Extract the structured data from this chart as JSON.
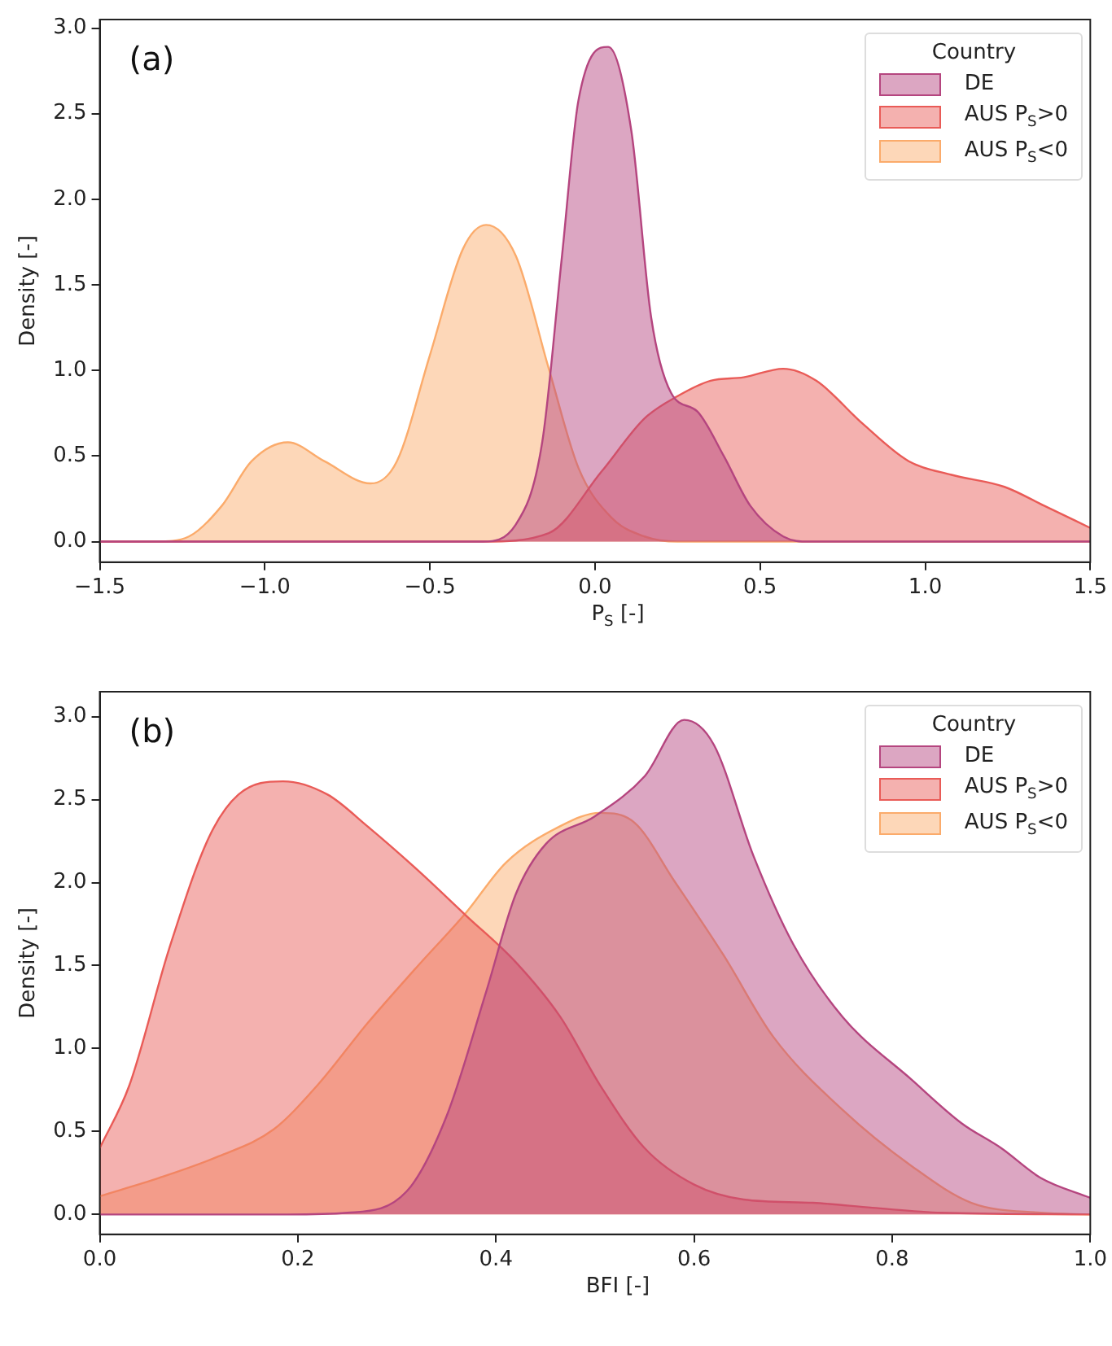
{
  "chart_data": [
    {
      "type": "area",
      "xlabel": "P$_{S}$ [-]",
      "ylabel": "Density [-]",
      "legend_title": "Country",
      "legend": "top right",
      "grid": false,
      "annotations": [
        "(a)"
      ],
      "xlim": [
        -1.5,
        1.5
      ],
      "xticks": [
        {
          "value": -1.5,
          "label": "−1.5"
        },
        {
          "value": -1.0,
          "label": "−1.0"
        },
        {
          "value": -0.5,
          "label": "−0.5"
        },
        {
          "value": 0,
          "label": "0.0"
        },
        {
          "value": 0.5,
          "label": "0.5"
        },
        {
          "value": 1.0,
          "label": "1.0"
        },
        {
          "value": 1.5,
          "label": "1.5"
        }
      ],
      "ylim": [
        -0.12,
        3.05
      ],
      "yticks": [
        {
          "value": 0,
          "label": "0.0"
        },
        0.5,
        {
          "value": 1.0,
          "label": "1.0"
        },
        1.5,
        {
          "value": 2.0,
          "label": "2.0"
        },
        2.5,
        {
          "value": 3.0,
          "label": "3.0"
        }
      ],
      "series": [
        {
          "name": "DE",
          "color": "#b5457f",
          "x": [
            -1.5,
            -0.34,
            -0.24,
            -0.16,
            -0.1,
            -0.05,
            0.04,
            0.11,
            0.17,
            0.23,
            0.31,
            0.39,
            0.47,
            0.57,
            0.65,
            1.5
          ],
          "values": [
            0,
            0,
            0.1,
            0.58,
            1.67,
            2.58,
            2.89,
            2.4,
            1.31,
            0.87,
            0.76,
            0.5,
            0.21,
            0.03,
            0,
            0
          ]
        },
        {
          "name": "AUS P$_{S}$>0",
          "color": "#e95b57",
          "x": [
            -1.5,
            -0.34,
            -0.14,
            0.02,
            0.15,
            0.25,
            0.35,
            0.45,
            0.57,
            0.67,
            0.81,
            0.95,
            1.08,
            1.24,
            1.36,
            1.5
          ],
          "values": [
            0,
            0,
            0.05,
            0.41,
            0.72,
            0.85,
            0.94,
            0.96,
            1.01,
            0.94,
            0.69,
            0.47,
            0.39,
            0.32,
            0.21,
            0.08
          ]
        },
        {
          "name": "AUS P$_{S}$<0",
          "color": "#fbab6b",
          "x": [
            -1.5,
            -1.33,
            -1.23,
            -1.13,
            -1.04,
            -0.93,
            -0.82,
            -0.68,
            -0.6,
            -0.5,
            -0.4,
            -0.33,
            -0.24,
            -0.14,
            -0.05,
            0.05,
            0.15,
            0.25,
            1.5
          ],
          "values": [
            0,
            0,
            0.03,
            0.21,
            0.47,
            0.58,
            0.47,
            0.34,
            0.47,
            1.09,
            1.71,
            1.85,
            1.67,
            1.01,
            0.43,
            0.14,
            0.03,
            0,
            0
          ]
        }
      ]
    },
    {
      "type": "area",
      "xlabel": "BFI [-]",
      "ylabel": "Density [-]",
      "legend_title": "Country",
      "legend": "top right",
      "grid": false,
      "annotations": [
        "(b)"
      ],
      "xlim": [
        0,
        1.0
      ],
      "xticks": [
        {
          "value": 0,
          "label": "0.0"
        },
        0.2,
        0.4,
        0.6,
        0.8,
        {
          "value": 1.0,
          "label": "1.0"
        }
      ],
      "ylim": [
        -0.12,
        3.15
      ],
      "yticks": [
        {
          "value": 0,
          "label": "0.0"
        },
        0.5,
        {
          "value": 1.0,
          "label": "1.0"
        },
        1.5,
        {
          "value": 2.0,
          "label": "2.0"
        },
        2.5,
        {
          "value": 3.0,
          "label": "3.0"
        }
      ],
      "series": [
        {
          "name": "DE",
          "color": "#b5457f",
          "x": [
            0,
            0.19,
            0.25,
            0.31,
            0.35,
            0.39,
            0.42,
            0.45,
            0.5,
            0.55,
            0.59,
            0.62,
            0.66,
            0.7,
            0.75,
            0.82,
            0.87,
            0.91,
            0.95,
            1.0
          ],
          "values": [
            0,
            0,
            0.01,
            0.14,
            0.59,
            1.34,
            1.93,
            2.23,
            2.4,
            2.64,
            2.98,
            2.83,
            2.16,
            1.63,
            1.19,
            0.81,
            0.55,
            0.4,
            0.22,
            0.1
          ]
        },
        {
          "name": "AUS P$_{S}$>0",
          "color": "#e95b57",
          "x": [
            0,
            0.03,
            0.07,
            0.11,
            0.14,
            0.185,
            0.23,
            0.27,
            0.32,
            0.37,
            0.42,
            0.465,
            0.505,
            0.55,
            0.6,
            0.65,
            0.72,
            0.78,
            0.85,
            1.0
          ],
          "values": [
            0.4,
            0.78,
            1.6,
            2.27,
            2.53,
            2.61,
            2.53,
            2.34,
            2.08,
            1.8,
            1.52,
            1.19,
            0.78,
            0.4,
            0.18,
            0.09,
            0.07,
            0.04,
            0.01,
            0
          ]
        },
        {
          "name": "AUS P$_{S}$<0",
          "color": "#fbab6b",
          "x": [
            0,
            0.06,
            0.12,
            0.175,
            0.22,
            0.27,
            0.32,
            0.37,
            0.41,
            0.465,
            0.505,
            0.54,
            0.58,
            0.63,
            0.68,
            0.75,
            0.82,
            0.88,
            0.95,
            1.0
          ],
          "values": [
            0.11,
            0.22,
            0.35,
            0.51,
            0.78,
            1.15,
            1.49,
            1.82,
            2.12,
            2.34,
            2.42,
            2.36,
            2.01,
            1.56,
            1.07,
            0.63,
            0.29,
            0.07,
            0.01,
            0
          ]
        }
      ]
    }
  ]
}
